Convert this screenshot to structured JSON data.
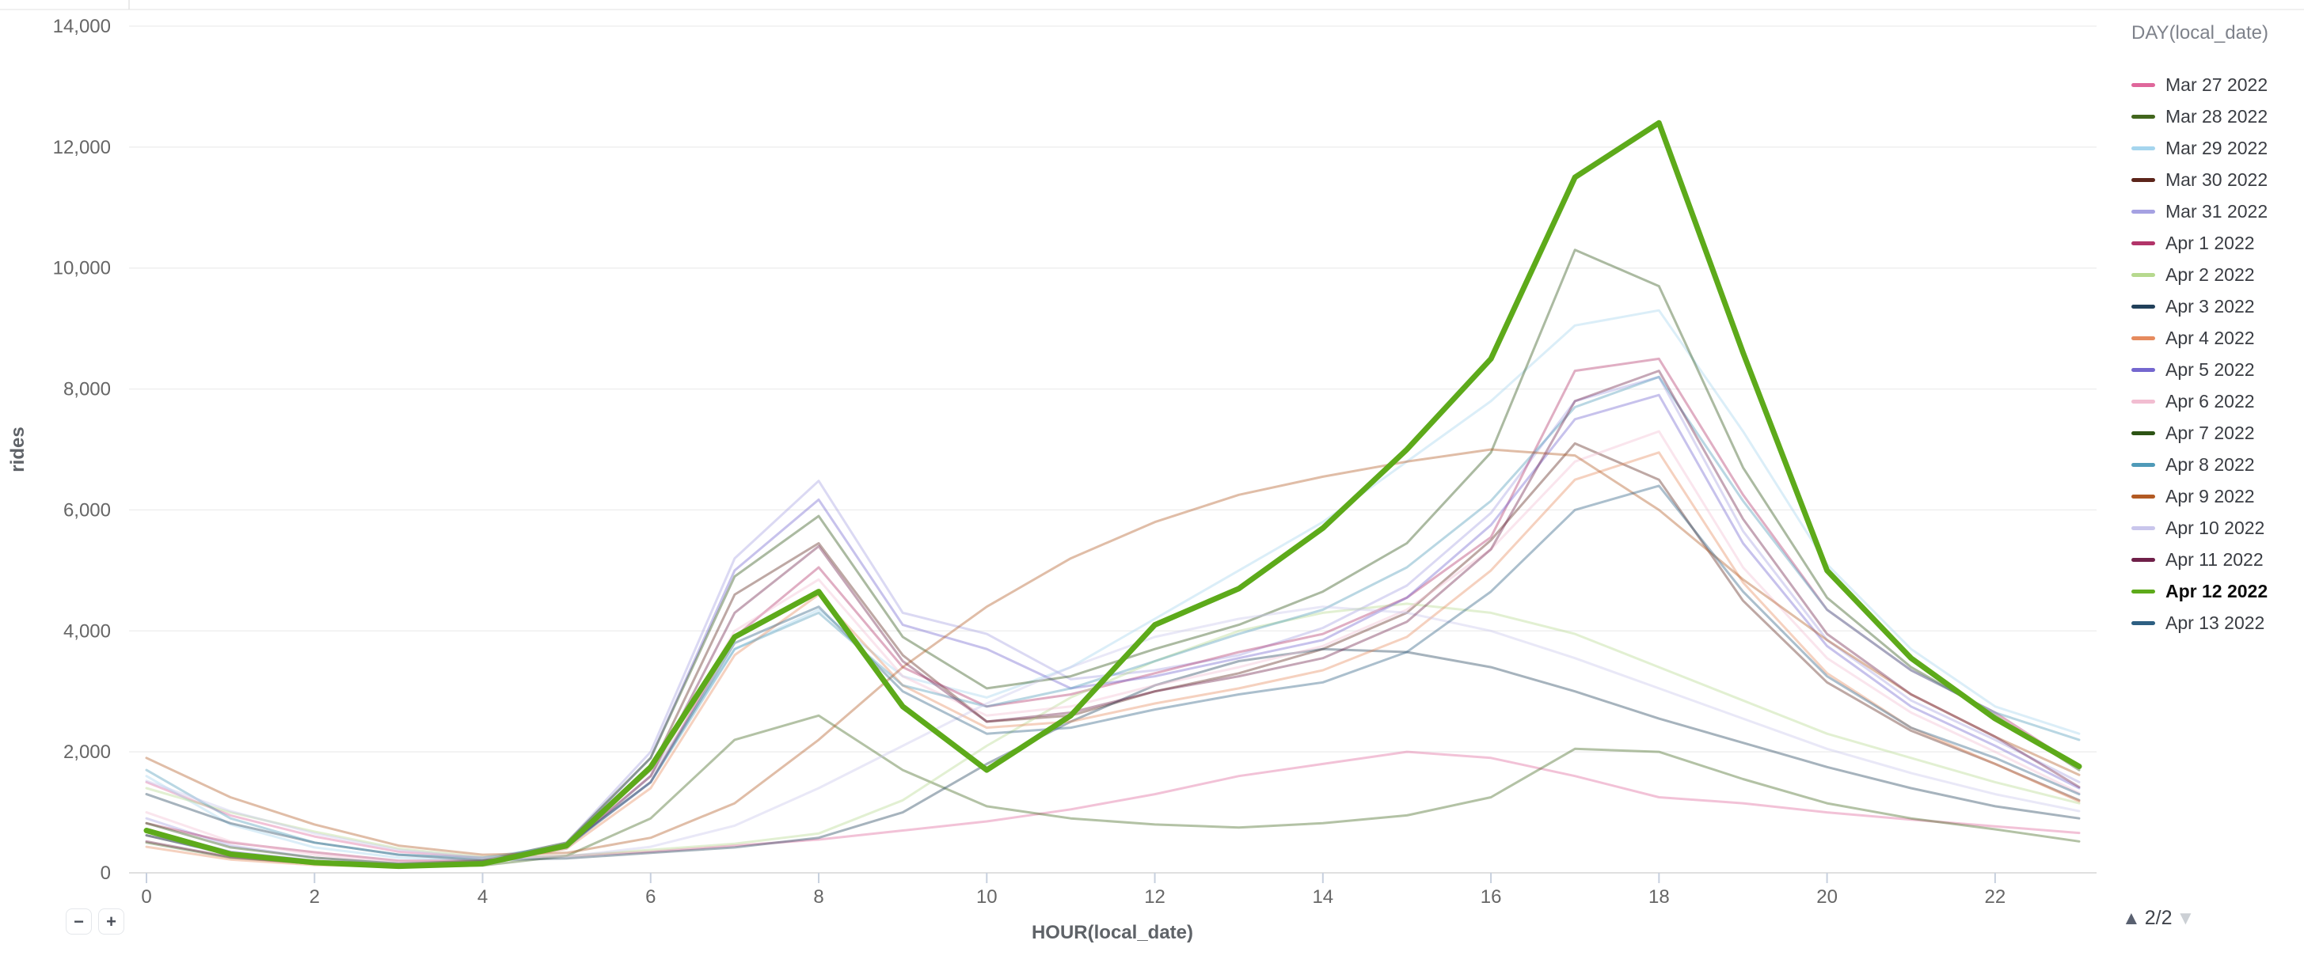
{
  "controls": {
    "zoom_out_label": "−",
    "zoom_in_label": "+",
    "page_up_symbol": "▲",
    "page_indicator": "2/2",
    "page_down_symbol": "▼"
  },
  "chart_data": {
    "type": "line",
    "title": "",
    "xlabel": "HOUR(local_date)",
    "ylabel": "rides",
    "legend_title": "DAY(local_date)",
    "legend_position": "right",
    "grid": true,
    "x": [
      0,
      1,
      2,
      3,
      4,
      5,
      6,
      7,
      8,
      9,
      10,
      11,
      12,
      13,
      14,
      15,
      16,
      17,
      18,
      19,
      20,
      21,
      22,
      23
    ],
    "x_ticks": [
      0,
      2,
      4,
      6,
      8,
      10,
      12,
      14,
      16,
      18,
      20,
      22
    ],
    "y_ticks": [
      0,
      2000,
      4000,
      6000,
      8000,
      10000,
      12000,
      14000
    ],
    "y_tick_labels": [
      "0",
      "2,000",
      "4,000",
      "6,000",
      "8,000",
      "10,000",
      "12,000",
      "14,000"
    ],
    "xlim": [
      0,
      23
    ],
    "ylim": [
      0,
      14000
    ],
    "highlight_color": "#5daa1a",
    "series": [
      {
        "name": "Mar 27 2022",
        "color": "#df679b",
        "highlighted": false,
        "values": [
          1500,
          950,
          600,
          350,
          250,
          280,
          350,
          450,
          550,
          700,
          850,
          1050,
          1300,
          1600,
          1800,
          2000,
          1900,
          1600,
          1250,
          1150,
          1000,
          880,
          770,
          660
        ]
      },
      {
        "name": "Mar 28 2022",
        "color": "#41661d",
        "highlighted": false,
        "values": [
          500,
          250,
          150,
          100,
          120,
          280,
          900,
          2200,
          2600,
          1700,
          1100,
          900,
          800,
          750,
          820,
          950,
          1250,
          2050,
          2000,
          1550,
          1150,
          900,
          720,
          520
        ]
      },
      {
        "name": "Mar 29 2022",
        "color": "#a5d5ee",
        "highlighted": false,
        "values": [
          1600,
          800,
          420,
          250,
          210,
          400,
          1600,
          3700,
          4350,
          3250,
          2900,
          3400,
          4200,
          5000,
          5800,
          6800,
          7800,
          9050,
          9300,
          7300,
          5100,
          3700,
          2750,
          2300
        ]
      },
      {
        "name": "Mar 30 2022",
        "color": "#5c251b",
        "highlighted": false,
        "values": [
          620,
          310,
          180,
          120,
          160,
          450,
          1700,
          4600,
          5450,
          3600,
          2500,
          2600,
          3000,
          3300,
          3700,
          4300,
          5500,
          7100,
          6500,
          4500,
          3150,
          2350,
          1800,
          1200
        ]
      },
      {
        "name": "Mar 31 2022",
        "color": "#a5a1e2",
        "highlighted": false,
        "values": [
          900,
          450,
          250,
          160,
          200,
          500,
          2000,
          5200,
          6480,
          4300,
          3950,
          3200,
          3350,
          3600,
          4050,
          4750,
          5950,
          7800,
          8200,
          5650,
          3850,
          2850,
          2200,
          1500
        ]
      },
      {
        "name": "Apr 1 2022",
        "color": "#b23469",
        "highlighted": false,
        "values": [
          820,
          500,
          340,
          200,
          200,
          450,
          1500,
          3900,
          5050,
          3400,
          2750,
          2950,
          3300,
          3650,
          3950,
          4550,
          5550,
          8300,
          8500,
          6250,
          4350,
          3350,
          2650,
          1750
        ]
      },
      {
        "name": "Apr 2 2022",
        "color": "#b6d98e",
        "highlighted": false,
        "values": [
          1400,
          1000,
          680,
          400,
          260,
          280,
          380,
          480,
          650,
          1200,
          2100,
          2900,
          3500,
          4000,
          4300,
          4450,
          4300,
          3950,
          3400,
          2850,
          2300,
          1900,
          1500,
          1150
        ]
      },
      {
        "name": "Apr 3 2022",
        "color": "#21405a",
        "highlighted": false,
        "values": [
          1300,
          820,
          500,
          300,
          210,
          240,
          330,
          420,
          580,
          1000,
          1800,
          2500,
          3100,
          3500,
          3700,
          3650,
          3400,
          3000,
          2550,
          2150,
          1750,
          1400,
          1100,
          900
        ]
      },
      {
        "name": "Apr 4 2022",
        "color": "#e68b5e",
        "highlighted": false,
        "values": [
          430,
          220,
          130,
          100,
          140,
          400,
          1400,
          3600,
          4600,
          3100,
          2400,
          2500,
          2800,
          3050,
          3350,
          3900,
          5000,
          6500,
          6950,
          4800,
          3300,
          2400,
          1800,
          1180
        ]
      },
      {
        "name": "Apr 5 2022",
        "color": "#7467cf",
        "highlighted": false,
        "values": [
          700,
          350,
          200,
          140,
          180,
          480,
          1900,
          5000,
          6170,
          4100,
          3700,
          3050,
          3250,
          3550,
          3850,
          4550,
          5750,
          7500,
          7900,
          5450,
          3750,
          2750,
          2100,
          1400
        ]
      },
      {
        "name": "Apr 6 2022",
        "color": "#f2bdd1",
        "highlighted": false,
        "values": [
          1000,
          520,
          300,
          180,
          200,
          450,
          1600,
          4000,
          4850,
          3250,
          2600,
          2750,
          3100,
          3400,
          3750,
          4350,
          5350,
          6800,
          7300,
          5050,
          3550,
          2650,
          2000,
          1320
        ]
      },
      {
        "name": "Apr 7 2022",
        "color": "#2c5314",
        "highlighted": false,
        "values": [
          820,
          420,
          250,
          150,
          200,
          500,
          1900,
          4900,
          5900,
          3900,
          3050,
          3250,
          3700,
          4100,
          4650,
          5450,
          6950,
          10300,
          9700,
          6700,
          4550,
          3400,
          2600,
          1700
        ]
      },
      {
        "name": "Apr 8 2022",
        "color": "#4f9ab8",
        "highlighted": false,
        "values": [
          1700,
          900,
          500,
          300,
          250,
          450,
          1500,
          3700,
          4300,
          3100,
          2750,
          3050,
          3500,
          3950,
          4350,
          5050,
          6150,
          7700,
          8200,
          6150,
          4350,
          3350,
          2650,
          2200
        ]
      },
      {
        "name": "Apr 9 2022",
        "color": "#b25a23",
        "highlighted": false,
        "values": [
          1900,
          1250,
          800,
          450,
          300,
          330,
          580,
          1150,
          2200,
          3400,
          4400,
          5200,
          5800,
          6250,
          6550,
          6800,
          7000,
          6900,
          6000,
          4850,
          3850,
          2950,
          2250,
          1620
        ]
      },
      {
        "name": "Apr 10 2022",
        "color": "#c9c6ec",
        "highlighted": false,
        "values": [
          1520,
          1020,
          650,
          380,
          250,
          270,
          430,
          780,
          1400,
          2100,
          2800,
          3400,
          3900,
          4200,
          4400,
          4300,
          4000,
          3550,
          3050,
          2550,
          2050,
          1650,
          1300,
          1020
        ]
      },
      {
        "name": "Apr 11 2022",
        "color": "#6f2049",
        "highlighted": false,
        "values": [
          520,
          260,
          150,
          100,
          140,
          420,
          1600,
          4300,
          5400,
          3500,
          2500,
          2650,
          3000,
          3250,
          3550,
          4150,
          5350,
          7800,
          8300,
          5850,
          3950,
          2950,
          2250,
          1420
        ]
      },
      {
        "name": "Apr 12 2022",
        "color": "#5daa1a",
        "highlighted": true,
        "values": [
          700,
          310,
          170,
          110,
          150,
          450,
          1750,
          3900,
          4650,
          2750,
          1700,
          2600,
          4100,
          4700,
          5700,
          7000,
          8500,
          11500,
          12400,
          8600,
          5000,
          3550,
          2550,
          1760
        ]
      },
      {
        "name": "Apr 13 2022",
        "color": "#2d5f82",
        "highlighted": false,
        "values": [
          620,
          300,
          180,
          120,
          160,
          430,
          1500,
          3800,
          4400,
          3000,
          2300,
          2400,
          2700,
          2950,
          3150,
          3650,
          4650,
          6000,
          6400,
          4650,
          3250,
          2400,
          1900,
          1300
        ]
      }
    ]
  }
}
